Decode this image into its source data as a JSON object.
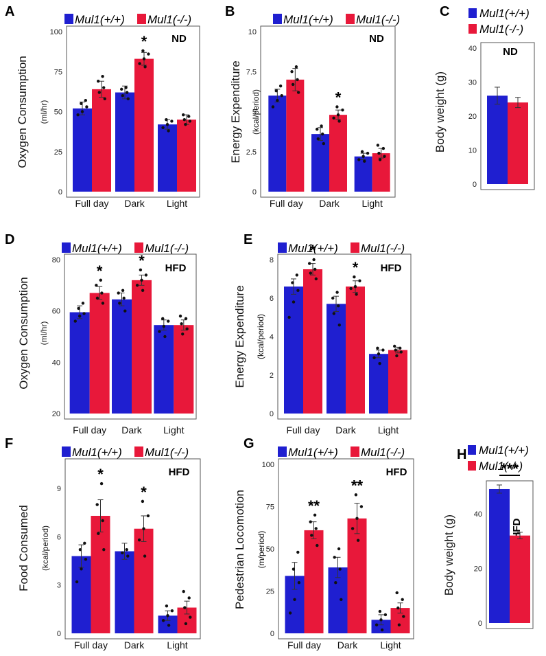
{
  "colors": {
    "wt": "#1f1fd0",
    "ko": "#e8183a",
    "dot": "#111111",
    "frame": "#555555",
    "err": "#333333"
  },
  "legend": {
    "wt": "Mul1(+/+)",
    "ko": "Mul1(-/-)"
  },
  "chart_data": [
    {
      "panel": "A",
      "type": "bar",
      "diet": "ND",
      "ylabel": "Oxygen Consumption",
      "yunit": "(ml/hr)",
      "ylim": [
        0,
        100
      ],
      "yticks": [
        0,
        25,
        50,
        75,
        100
      ],
      "tick_labels": [
        "0",
        "25",
        "50",
        "75",
        "100"
      ],
      "categories": [
        "Full day",
        "Dark",
        "Light"
      ],
      "series": [
        {
          "name": "Mul1(+/+)",
          "values": [
            52,
            62,
            42
          ],
          "errors": [
            4,
            4,
            3
          ],
          "points": [
            [
              48,
              50,
              53,
              55,
              57
            ],
            [
              58,
              60,
              62,
              64,
              65
            ],
            [
              38,
              40,
              42,
              44,
              45
            ]
          ]
        },
        {
          "name": "Mul1(-/-)",
          "values": [
            64,
            83,
            45
          ],
          "errors": [
            5,
            4,
            3
          ],
          "points": [
            [
              58,
              62,
              65,
              69,
              72
            ],
            [
              78,
              80,
              83,
              86,
              88
            ],
            [
              42,
              44,
              45,
              47,
              48
            ]
          ]
        }
      ],
      "annotations": [
        {
          "category": 1,
          "text": "*"
        }
      ]
    },
    {
      "panel": "B",
      "type": "bar",
      "diet": "ND",
      "ylabel": "Energy Expenditure",
      "yunit": "(kcal/period)",
      "ylim": [
        0,
        10
      ],
      "yticks": [
        0,
        2.5,
        5,
        7.5,
        10
      ],
      "tick_labels": [
        "0",
        "2.5",
        "5",
        "7.5",
        "10"
      ],
      "categories": [
        "Full day",
        "Dark",
        "Light"
      ],
      "series": [
        {
          "name": "Mul1(+/+)",
          "values": [
            6.0,
            3.6,
            2.2
          ],
          "errors": [
            0.4,
            0.4,
            0.2
          ],
          "points": [
            [
              5.3,
              5.7,
              6.0,
              6.3,
              6.6
            ],
            [
              3.0,
              3.3,
              3.6,
              3.9,
              4.1
            ],
            [
              1.9,
              2.0,
              2.2,
              2.4,
              2.5
            ]
          ]
        },
        {
          "name": "Mul1(-/-)",
          "values": [
            7.0,
            4.8,
            2.4
          ],
          "errors": [
            0.7,
            0.3,
            0.3
          ],
          "points": [
            [
              6.2,
              6.7,
              7.0,
              7.5,
              7.8
            ],
            [
              4.4,
              4.6,
              4.8,
              5.1,
              5.3
            ],
            [
              2.0,
              2.2,
              2.4,
              2.7,
              2.9
            ]
          ]
        }
      ],
      "annotations": [
        {
          "category": 1,
          "text": "*"
        }
      ]
    },
    {
      "panel": "C",
      "type": "bar",
      "diet": "ND",
      "ylabel": "Body weight (g)",
      "yunit": "",
      "ylim": [
        0,
        40
      ],
      "yticks": [
        0,
        10,
        20,
        30,
        40
      ],
      "tick_labels": [
        "0",
        "10",
        "20",
        "30",
        "40"
      ],
      "categories": [
        ""
      ],
      "series": [
        {
          "name": "Mul1(+/+)",
          "values": [
            26
          ],
          "errors": [
            2.5
          ],
          "points": [
            []
          ]
        },
        {
          "name": "Mul1(-/-)",
          "values": [
            24
          ],
          "errors": [
            1.5
          ],
          "points": [
            []
          ]
        }
      ],
      "annotations": []
    },
    {
      "panel": "D",
      "type": "bar",
      "diet": "HFD",
      "ylabel": "Oxygen Consumption",
      "yunit": "(ml/hr)",
      "ylim": [
        20,
        80
      ],
      "yticks": [
        20,
        40,
        60,
        80
      ],
      "tick_labels": [
        "20",
        "40",
        "60",
        "80"
      ],
      "categories": [
        "Full day",
        "Dark",
        "Light"
      ],
      "series": [
        {
          "name": "Mul1(+/+)",
          "values": [
            59.5,
            64.5,
            54.5
          ],
          "errors": [
            2.5,
            2.5,
            2.0
          ],
          "points": [
            [
              56,
              58,
              59,
              61,
              63
            ],
            [
              60,
              63,
              65,
              67,
              68
            ],
            [
              50,
              52,
              54,
              56,
              57
            ]
          ]
        },
        {
          "name": "Mul1(-/-)",
          "values": [
            67,
            72,
            54.5
          ],
          "errors": [
            2.5,
            2.0,
            2.0
          ],
          "points": [
            [
              63,
              65,
              67,
              70,
              72
            ],
            [
              68,
              70,
              72,
              74,
              76
            ],
            [
              51,
              53,
              55,
              57,
              58
            ]
          ]
        }
      ],
      "annotations": [
        {
          "category": 0,
          "text": "*"
        },
        {
          "category": 1,
          "text": "*"
        }
      ]
    },
    {
      "panel": "E",
      "type": "bar",
      "diet": "HFD",
      "ylabel": "Energy Expenditure",
      "yunit": "(kcal/period)",
      "ylim": [
        0,
        8
      ],
      "yticks": [
        0,
        2,
        4,
        6,
        8
      ],
      "tick_labels": [
        "0",
        "2",
        "4",
        "6",
        "8"
      ],
      "categories": [
        "Full day",
        "Dark",
        "Light"
      ],
      "series": [
        {
          "name": "Mul1(+/+)",
          "values": [
            6.6,
            5.7,
            3.1
          ],
          "errors": [
            0.4,
            0.4,
            0.2
          ],
          "points": [
            [
              5.0,
              5.8,
              6.4,
              6.8,
              7.2
            ],
            [
              4.6,
              5.2,
              5.6,
              6.0,
              6.3
            ],
            [
              2.6,
              2.9,
              3.1,
              3.3,
              3.4
            ]
          ]
        },
        {
          "name": "Mul1(-/-)",
          "values": [
            7.5,
            6.6,
            3.3
          ],
          "errors": [
            0.3,
            0.3,
            0.15
          ],
          "points": [
            [
              7.0,
              7.3,
              7.5,
              7.8,
              8.0
            ],
            [
              6.2,
              6.5,
              6.6,
              6.9,
              7.1
            ],
            [
              3.0,
              3.2,
              3.3,
              3.4,
              3.5
            ]
          ]
        }
      ],
      "annotations": [
        {
          "category": 0,
          "text": "*"
        },
        {
          "category": 1,
          "text": "*"
        }
      ]
    },
    {
      "panel": "F",
      "type": "bar",
      "diet": "HFD",
      "ylabel": "Food Consumed",
      "yunit": "(kcal/period)",
      "ylim": [
        0,
        10.5
      ],
      "yticks": [
        0,
        3,
        6,
        9
      ],
      "tick_labels": [
        "0",
        "3",
        "6",
        "9"
      ],
      "categories": [
        "Full day",
        "Dark",
        "Light"
      ],
      "series": [
        {
          "name": "Mul1(+/+)",
          "values": [
            4.8,
            5.1,
            1.1
          ],
          "errors": [
            0.7,
            0.5,
            0.3
          ],
          "points": [
            [
              3.2,
              4.0,
              4.6,
              5.2,
              5.6
            ],
            [
              4.8,
              5.0,
              5.2
            ],
            [
              0.5,
              0.8,
              1.1,
              1.4,
              1.7
            ]
          ]
        },
        {
          "name": "Mul1(-/-)",
          "values": [
            7.3,
            6.5,
            1.6
          ],
          "errors": [
            1.0,
            0.8,
            0.4
          ],
          "points": [
            [
              5.2,
              6.2,
              7.0,
              8.0,
              9.3
            ],
            [
              4.8,
              5.8,
              6.5,
              7.3,
              8.2
            ],
            [
              0.6,
              1.0,
              1.6,
              2.2,
              2.6
            ]
          ]
        }
      ],
      "annotations": [
        {
          "category": 0,
          "text": "*"
        },
        {
          "category": 1,
          "text": "*"
        }
      ]
    },
    {
      "panel": "G",
      "type": "bar",
      "diet": "HFD",
      "ylabel": "Pedestrian Locomotion",
      "yunit": "(m/period)",
      "ylim": [
        0,
        100
      ],
      "yticks": [
        0,
        25,
        50,
        75,
        100
      ],
      "tick_labels": [
        "0",
        "25",
        "50",
        "75",
        "100"
      ],
      "categories": [
        "Full day",
        "Dark",
        "Light"
      ],
      "series": [
        {
          "name": "Mul1(+/+)",
          "values": [
            34,
            39,
            8
          ],
          "errors": [
            8,
            6,
            3
          ],
          "points": [
            [
              12,
              20,
              30,
              38,
              48
            ],
            [
              20,
              30,
              38,
              45,
              50
            ],
            [
              2,
              5,
              8,
              11,
              13
            ]
          ]
        },
        {
          "name": "Mul1(-/-)",
          "values": [
            61,
            68,
            15
          ],
          "errors": [
            5,
            9,
            3
          ],
          "points": [
            [
              52,
              58,
              62,
              66,
              70
            ],
            [
              55,
              62,
              68,
              75,
              82
            ],
            [
              5,
              10,
              15,
              20,
              24
            ]
          ]
        }
      ],
      "annotations": [
        {
          "category": 0,
          "text": "**"
        },
        {
          "category": 1,
          "text": "**"
        }
      ]
    },
    {
      "panel": "H",
      "type": "bar",
      "diet": "HFD",
      "ylabel": "Body weight (g)",
      "yunit": "",
      "ylim": [
        0,
        50
      ],
      "yticks": [
        0,
        20,
        40
      ],
      "tick_labels": [
        "0",
        "20",
        "40"
      ],
      "categories": [
        ""
      ],
      "series": [
        {
          "name": "Mul1(+/+)",
          "values": [
            49
          ],
          "errors": [
            1.5
          ],
          "points": [
            []
          ]
        },
        {
          "name": "Mul1(-/-)",
          "values": [
            32
          ],
          "errors": [
            1.2
          ],
          "points": [
            []
          ]
        }
      ],
      "annotations": [
        {
          "category": 0,
          "text": "***",
          "bracket": true
        }
      ]
    }
  ]
}
